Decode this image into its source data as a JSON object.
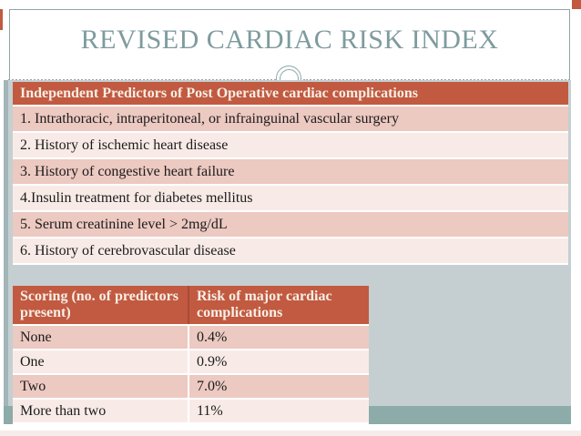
{
  "slide": {
    "title": "REVISED CARDIAC RISK INDEX"
  },
  "predictors_table": {
    "header": "Independent Predictors of Post Operative cardiac complications",
    "rows": [
      "1. Intrathoracic, intraperitoneal, or infrainguinal vascular surgery",
      "2. History of ischemic heart disease",
      "3. History of congestive heart failure",
      "4.Insulin treatment for diabetes mellitus",
      "5. Serum creatinine level > 2mg/dL",
      "6. History of cerebrovascular disease"
    ]
  },
  "scoring_table": {
    "columns": [
      "Scoring (no. of predictors present)",
      "Risk of  major cardiac complications"
    ],
    "rows": [
      [
        "None",
        "0.4%"
      ],
      [
        "One",
        "0.9%"
      ],
      [
        "Two",
        "7.0%"
      ],
      [
        "More than two",
        "11%"
      ]
    ]
  },
  "colors": {
    "accent_red": "#C15A40",
    "divider_red": "#A84A35",
    "mark_red": "#C15A40",
    "header_text": "#F7EFE7",
    "row_pink_dark": "#ECC9C1",
    "row_pink_light": "#F8EBE7",
    "panel_bg": "#C5CFD2",
    "panel_stripe": "#A2B5B8",
    "panel_band": "#8DABA8",
    "border_teal": "#8FA6A9",
    "title_text": "#7E9B9E",
    "dash_gray": "#9AA4A4",
    "text_dark": "#1B1B1B",
    "bottom_strip_pink": "#F6ECEA"
  }
}
